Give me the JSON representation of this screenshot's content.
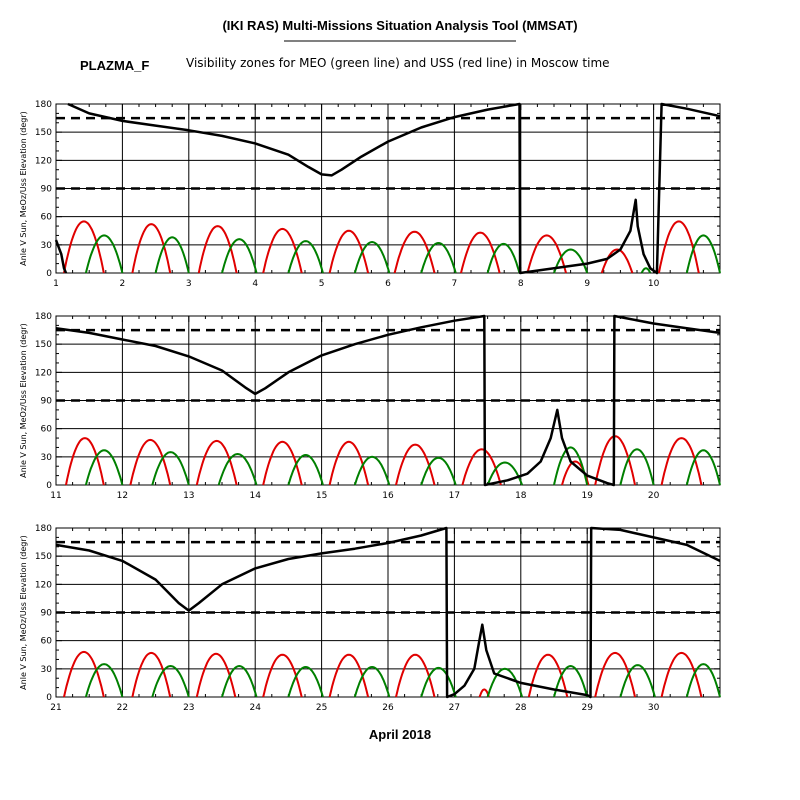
{
  "header": {
    "title": "(IKI RAS) Multi-Missions Situation Analysis Tool (MMSAT)",
    "mission": "PLAZMA_F",
    "subtitle": "Visibility zones for MEO (green line) and USS (red line) in Moscow time"
  },
  "colors": {
    "sun_angle": "#000000",
    "meo": "#008000",
    "uss": "#e00000",
    "threshold": "#000000"
  },
  "chart_data": [
    {
      "type": "line",
      "xlim": [
        1,
        11
      ],
      "x_ticks": [
        "1",
        "2",
        "3",
        "4",
        "5",
        "6",
        "7",
        "8",
        "9",
        "10"
      ],
      "ylim": [
        0,
        180
      ],
      "y_ticks": [
        "0",
        "30",
        "60",
        "90",
        "120",
        "150",
        "180"
      ],
      "ylabel": "Anle V Sun, MeOz/Uss Elevation (degr)",
      "grid": true,
      "thresholds": [
        90,
        165
      ],
      "sun_angle": [
        [
          1.18,
          180
        ],
        [
          1.5,
          170
        ],
        [
          2,
          162
        ],
        [
          2.5,
          157
        ],
        [
          3,
          152
        ],
        [
          3.5,
          146
        ],
        [
          4,
          138
        ],
        [
          4.5,
          126
        ],
        [
          4.8,
          113
        ],
        [
          5.0,
          105
        ],
        [
          5.15,
          104
        ],
        [
          5.3,
          110
        ],
        [
          5.6,
          124
        ],
        [
          6,
          140
        ],
        [
          6.5,
          155
        ],
        [
          7,
          166
        ],
        [
          7.5,
          174
        ],
        [
          7.98,
          180
        ],
        [
          7.99,
          0
        ],
        [
          8.5,
          5
        ],
        [
          9,
          10
        ],
        [
          9.3,
          15
        ],
        [
          9.5,
          25
        ],
        [
          9.65,
          45
        ],
        [
          9.73,
          78
        ],
        [
          9.76,
          50
        ],
        [
          9.85,
          20
        ],
        [
          9.95,
          5
        ],
        [
          10.05,
          0
        ],
        [
          10.12,
          180
        ],
        [
          10.5,
          175
        ],
        [
          11,
          167
        ]
      ],
      "sun_angle_start": [
        [
          1,
          35
        ],
        [
          1.08,
          20
        ],
        [
          1.12,
          5
        ],
        [
          1.15,
          0
        ]
      ],
      "uss_passes": [
        [
          1.12,
          1.72,
          55
        ],
        [
          2.15,
          2.72,
          52
        ],
        [
          3.15,
          3.72,
          50
        ],
        [
          4.12,
          4.7,
          47
        ],
        [
          5.12,
          5.7,
          45
        ],
        [
          6.1,
          6.7,
          44
        ],
        [
          7.1,
          7.68,
          43
        ],
        [
          8.1,
          8.68,
          40
        ],
        [
          9.22,
          9.68,
          25
        ],
        [
          10.08,
          10.68,
          55
        ]
      ],
      "meo_passes": [
        [
          1.45,
          2.0,
          40
        ],
        [
          2.5,
          3.0,
          38
        ],
        [
          3.5,
          4.02,
          36
        ],
        [
          4.5,
          5.02,
          34
        ],
        [
          5.5,
          6.02,
          33
        ],
        [
          6.5,
          7.02,
          32
        ],
        [
          7.5,
          7.98,
          31
        ],
        [
          8.5,
          9.0,
          25
        ],
        [
          9.82,
          9.95,
          5
        ],
        [
          10.5,
          11.0,
          40
        ]
      ]
    },
    {
      "type": "line",
      "xlim": [
        11,
        21
      ],
      "x_ticks": [
        "11",
        "12",
        "13",
        "14",
        "15",
        "16",
        "17",
        "18",
        "19",
        "20"
      ],
      "ylim": [
        0,
        180
      ],
      "y_ticks": [
        "0",
        "30",
        "60",
        "90",
        "120",
        "150",
        "180"
      ],
      "ylabel": "Anle V Sun, MeOz/Uss Elevation (degr)",
      "grid": true,
      "thresholds": [
        90,
        165
      ],
      "sun_angle": [
        [
          11,
          167
        ],
        [
          11.5,
          162
        ],
        [
          12,
          155
        ],
        [
          12.5,
          148
        ],
        [
          13,
          137
        ],
        [
          13.5,
          122
        ],
        [
          13.85,
          104
        ],
        [
          14.0,
          97
        ],
        [
          14.15,
          103
        ],
        [
          14.5,
          120
        ],
        [
          15,
          138
        ],
        [
          15.5,
          150
        ],
        [
          16,
          160
        ],
        [
          16.5,
          168
        ],
        [
          17,
          175
        ],
        [
          17.45,
          180
        ],
        [
          17.46,
          0
        ],
        [
          17.8,
          5
        ],
        [
          18.1,
          12
        ],
        [
          18.3,
          25
        ],
        [
          18.45,
          50
        ],
        [
          18.55,
          80
        ],
        [
          18.62,
          50
        ],
        [
          18.75,
          25
        ],
        [
          19.0,
          10
        ],
        [
          19.3,
          2
        ],
        [
          19.4,
          0
        ],
        [
          19.41,
          180
        ],
        [
          20,
          172
        ],
        [
          20.5,
          167
        ],
        [
          21,
          162
        ]
      ],
      "sun_angle_start": [],
      "uss_passes": [
        [
          11.15,
          11.72,
          50
        ],
        [
          12.12,
          12.72,
          48
        ],
        [
          13.12,
          13.72,
          47
        ],
        [
          14.12,
          14.7,
          46
        ],
        [
          15.12,
          15.7,
          46
        ],
        [
          16.12,
          16.7,
          43
        ],
        [
          17.12,
          17.7,
          38
        ],
        [
          18.62,
          19.02,
          25
        ],
        [
          19.12,
          19.72,
          52
        ],
        [
          20.12,
          20.72,
          50
        ]
      ],
      "meo_passes": [
        [
          11.45,
          12.0,
          37
        ],
        [
          12.45,
          13.0,
          35
        ],
        [
          13.45,
          14.02,
          33
        ],
        [
          14.5,
          15.02,
          32
        ],
        [
          15.5,
          16.02,
          30
        ],
        [
          16.5,
          17.02,
          29
        ],
        [
          17.5,
          18.02,
          24
        ],
        [
          18.5,
          19.0,
          40
        ],
        [
          19.5,
          20.0,
          38
        ],
        [
          20.5,
          21.0,
          37
        ]
      ]
    },
    {
      "type": "line",
      "xlim": [
        21,
        31
      ],
      "x_ticks": [
        "21",
        "22",
        "23",
        "24",
        "25",
        "26",
        "27",
        "28",
        "29",
        "30"
      ],
      "ylim": [
        0,
        180
      ],
      "y_ticks": [
        "0",
        "30",
        "60",
        "90",
        "120",
        "150",
        "180"
      ],
      "ylabel": "Anle V Sun, MeOz/Uss Elevation (degr)",
      "grid": true,
      "thresholds": [
        90,
        165
      ],
      "sun_angle": [
        [
          21,
          162
        ],
        [
          21.5,
          156
        ],
        [
          22,
          145
        ],
        [
          22.5,
          125
        ],
        [
          22.85,
          100
        ],
        [
          23.0,
          92
        ],
        [
          23.15,
          100
        ],
        [
          23.5,
          120
        ],
        [
          24,
          137
        ],
        [
          24.5,
          147
        ],
        [
          25,
          153
        ],
        [
          25.5,
          158
        ],
        [
          26,
          164
        ],
        [
          26.5,
          172
        ],
        [
          26.88,
          180
        ],
        [
          26.89,
          0
        ],
        [
          27.0,
          3
        ],
        [
          27.15,
          12
        ],
        [
          27.3,
          30
        ],
        [
          27.37,
          58
        ],
        [
          27.42,
          77
        ],
        [
          27.48,
          50
        ],
        [
          27.6,
          25
        ],
        [
          28,
          15
        ],
        [
          28.5,
          8
        ],
        [
          29,
          2
        ],
        [
          29.05,
          0
        ],
        [
          29.06,
          180
        ],
        [
          29.5,
          178
        ],
        [
          30,
          170
        ],
        [
          30.5,
          162
        ],
        [
          31,
          145
        ]
      ],
      "sun_angle_start": [],
      "uss_passes": [
        [
          21.12,
          21.72,
          48
        ],
        [
          22.15,
          22.72,
          47
        ],
        [
          23.12,
          23.7,
          46
        ],
        [
          24.12,
          24.7,
          45
        ],
        [
          25.12,
          25.7,
          45
        ],
        [
          26.12,
          26.7,
          45
        ],
        [
          27.38,
          27.52,
          8
        ],
        [
          28.12,
          28.7,
          45
        ],
        [
          29.12,
          29.72,
          47
        ],
        [
          30.12,
          30.72,
          47
        ]
      ],
      "meo_passes": [
        [
          21.45,
          22.0,
          35
        ],
        [
          22.45,
          23.0,
          33
        ],
        [
          23.5,
          24.02,
          33
        ],
        [
          24.5,
          25.02,
          32
        ],
        [
          25.5,
          26.02,
          32
        ],
        [
          26.5,
          27.02,
          31
        ],
        [
          27.5,
          28.02,
          30
        ],
        [
          28.5,
          29.0,
          33
        ],
        [
          29.5,
          30.02,
          34
        ],
        [
          30.5,
          31.0,
          35
        ]
      ]
    }
  ],
  "xlabel": "April 2018"
}
